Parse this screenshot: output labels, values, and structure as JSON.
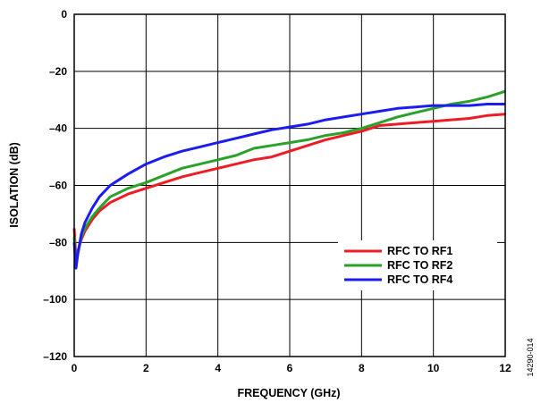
{
  "figure_id": "14290-014",
  "chart_data": {
    "type": "line",
    "xlabel": "FREQUENCY (GHz)",
    "ylabel": "ISOLATION (dB)",
    "xlim": [
      0,
      12
    ],
    "ylim": [
      -120,
      0
    ],
    "x_ticks": [
      0,
      2,
      4,
      6,
      8,
      10,
      12
    ],
    "x_tick_labels": [
      "0",
      "2",
      "4",
      "6",
      "8",
      "10",
      "12"
    ],
    "y_ticks": [
      0,
      -20,
      -40,
      -60,
      -80,
      -100,
      -120
    ],
    "y_tick_labels": [
      "0",
      "–20",
      "–40",
      "–60",
      "–80",
      "–100",
      "–120"
    ],
    "grid": true,
    "legend_position": "lower-right",
    "series": [
      {
        "name": "RFC TO RF1",
        "color": "#ee1c25",
        "x": [
          0,
          0.05,
          0.1,
          0.2,
          0.3,
          0.5,
          0.7,
          1,
          1.5,
          2,
          2.5,
          3,
          3.5,
          4,
          4.5,
          5,
          5.5,
          6,
          6.5,
          7,
          7.5,
          8,
          8.5,
          9,
          9.5,
          10,
          10.5,
          11,
          11.5,
          12
        ],
        "y": [
          -75,
          -86,
          -83,
          -79,
          -76,
          -72,
          -69,
          -66,
          -63,
          -61,
          -59,
          -57,
          -55.5,
          -54,
          -52.5,
          -51,
          -50,
          -48,
          -46,
          -44,
          -42.5,
          -41,
          -39,
          -38.5,
          -38,
          -37.5,
          -37,
          -36.5,
          -35.5,
          -35
        ]
      },
      {
        "name": "RFC TO RF2",
        "color": "#2aa22a",
        "x": [
          0,
          0.05,
          0.1,
          0.2,
          0.3,
          0.5,
          0.7,
          1,
          1.5,
          2,
          2.5,
          3,
          3.5,
          4,
          4.5,
          5,
          5.5,
          6,
          6.5,
          7,
          7.5,
          8,
          8.5,
          9,
          9.5,
          10,
          10.5,
          11,
          11.5,
          12
        ],
        "y": [
          -78,
          -88,
          -84,
          -78,
          -75,
          -71,
          -68,
          -64,
          -61,
          -59,
          -56.5,
          -54,
          -52.5,
          -51,
          -49.5,
          -47,
          -46,
          -45,
          -44,
          -42.5,
          -41.5,
          -40,
          -38,
          -36,
          -34.5,
          -33,
          -31.5,
          -30.5,
          -29,
          -27
        ]
      },
      {
        "name": "RFC TO RF4",
        "color": "#1c1cf0",
        "x": [
          0,
          0.05,
          0.1,
          0.2,
          0.3,
          0.5,
          0.7,
          1,
          1.5,
          2,
          2.5,
          3,
          3.5,
          4,
          4.5,
          5,
          5.5,
          6,
          6.5,
          7,
          7.5,
          8,
          8.5,
          9,
          9.5,
          10,
          10.5,
          11,
          11.5,
          12
        ],
        "y": [
          -80,
          -89,
          -84,
          -77,
          -73,
          -68,
          -64,
          -60,
          -56,
          -52.5,
          -50,
          -48,
          -46.5,
          -45,
          -43.5,
          -42,
          -40.5,
          -39.5,
          -38.5,
          -37,
          -36,
          -35,
          -34,
          -33,
          -32.5,
          -32,
          -32,
          -32,
          -31.5,
          -31.5
        ]
      }
    ]
  }
}
